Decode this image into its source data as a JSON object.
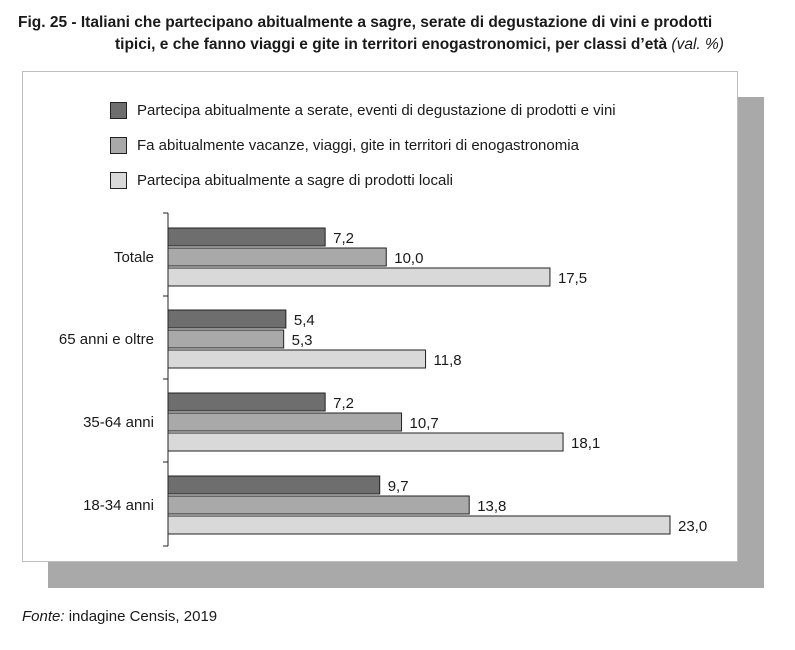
{
  "title": {
    "line1": "Fig. 25 - Italiani che partecipano abitualmente a sagre, serate di degustazione di vini e prodotti",
    "line2": "tipici, e che fanno viaggi e gite in territori enogastronomici, per classi d’età",
    "unit": "(val. %)"
  },
  "source": {
    "label": "Fonte:",
    "text": " indagine Censis, 2019"
  },
  "chart_data": {
    "type": "bar",
    "orientation": "horizontal",
    "categories": [
      "Totale",
      "65 anni e oltre",
      "35-64 anni",
      "18-34 anni"
    ],
    "series": [
      {
        "name": "Partecipa abitualmente a serate, eventi di degustazione di prodotti e vini",
        "color": "#6e6e6e",
        "values": [
          7.2,
          5.4,
          7.2,
          9.7
        ],
        "labels": [
          "7,2",
          "5,4",
          "7,2",
          "9,7"
        ]
      },
      {
        "name": "Fa abitualmente vacanze, viaggi, gite in territori di enogastronomia",
        "color": "#a9a9a9",
        "values": [
          10.0,
          5.3,
          10.7,
          13.8
        ],
        "labels": [
          "10,0",
          "5,3",
          "10,7",
          "13,8"
        ]
      },
      {
        "name": "Partecipa abitualmente a sagre di prodotti locali",
        "color": "#d9d9d9",
        "values": [
          17.5,
          11.8,
          18.1,
          23.0
        ],
        "labels": [
          "17,5",
          "11,8",
          "18,1",
          "23,0"
        ]
      }
    ],
    "xlim": [
      0,
      23
    ],
    "grid": false,
    "legend": "top"
  }
}
